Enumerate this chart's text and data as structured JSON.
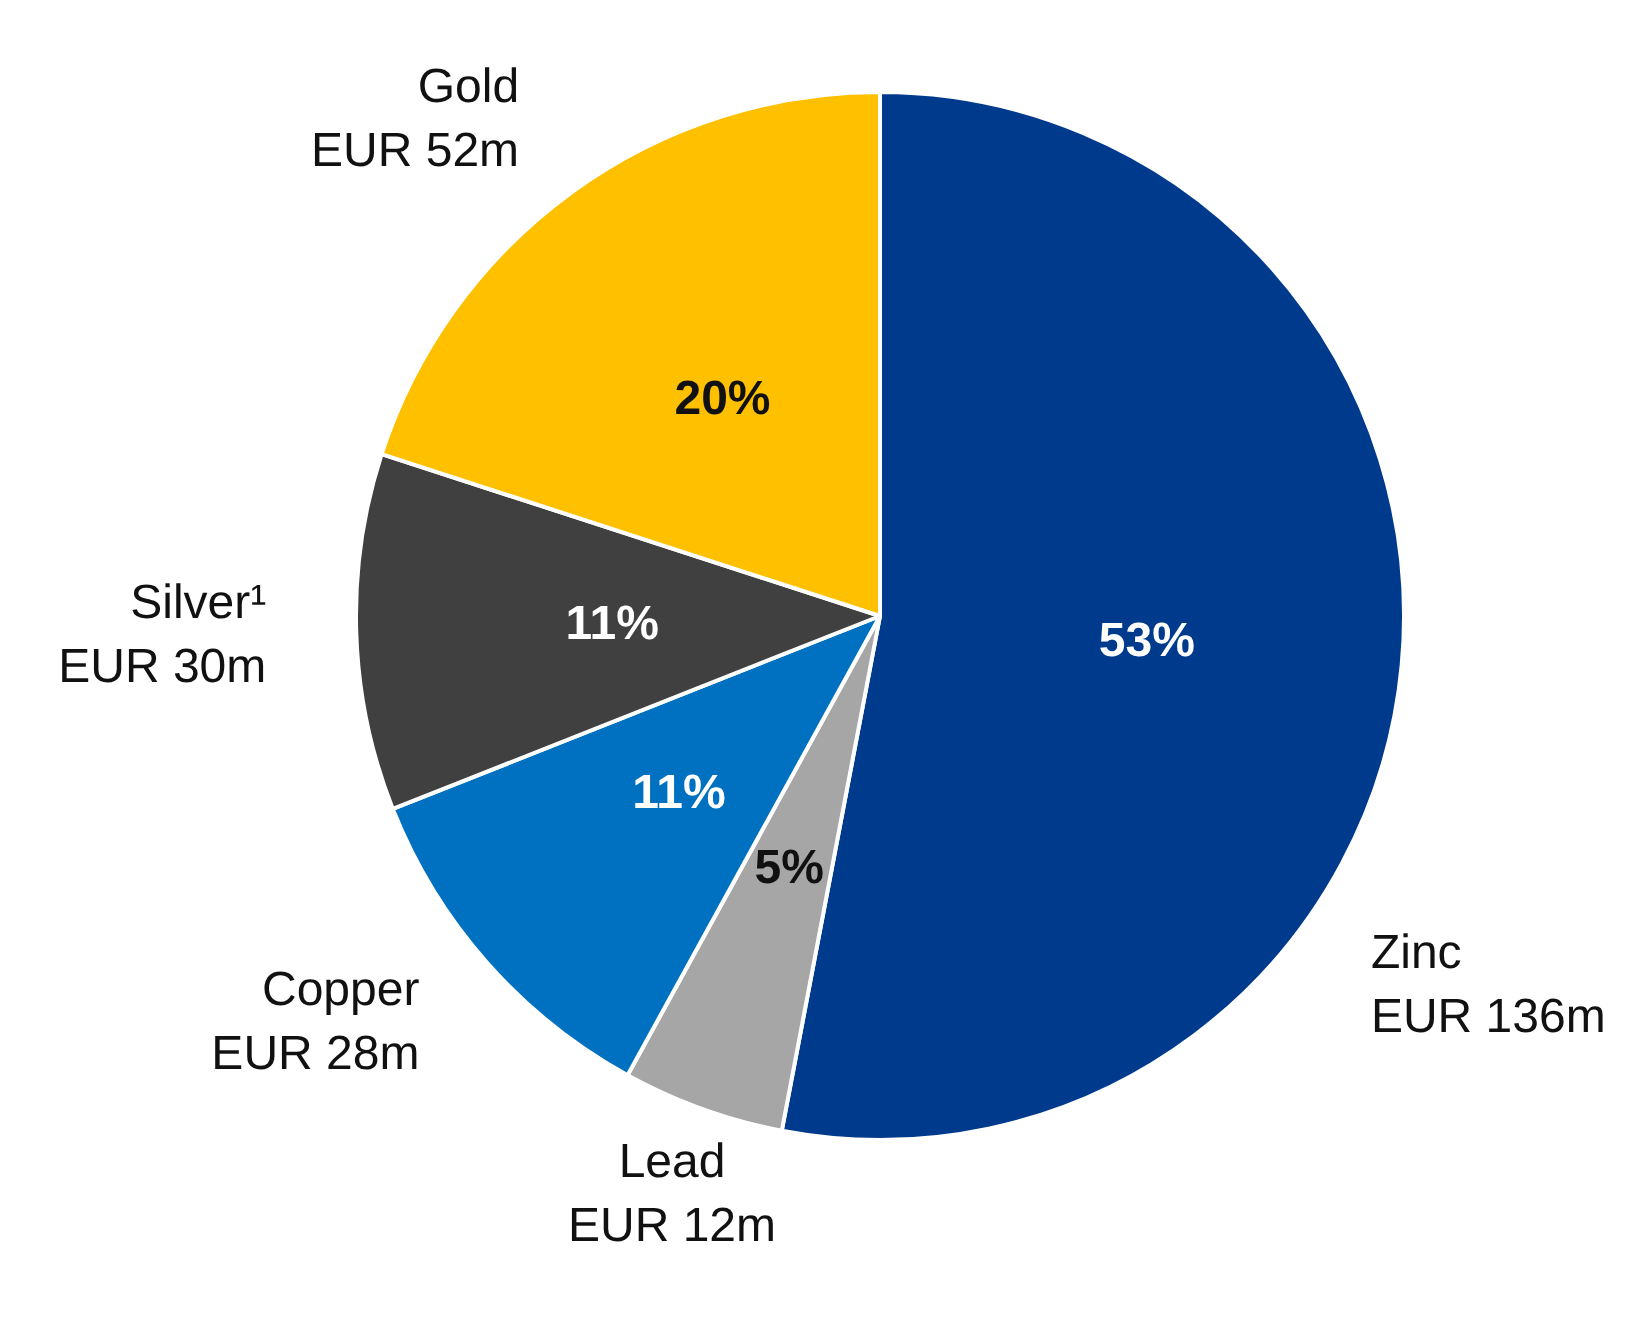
{
  "chart_data": {
    "type": "pie",
    "categories": [
      "Zinc\nEUR 136m",
      "Lead\nEUR 12m",
      "Copper\nEUR 28m",
      "Silver¹\nEUR 30m",
      "Gold\nEUR 52m"
    ],
    "values": [
      53,
      5,
      11,
      11,
      20
    ],
    "value_labels": [
      "53%",
      "5%",
      "11%",
      "11%",
      "20%"
    ],
    "colors": [
      "#003a8c",
      "#a6a6a6",
      "#0070c0",
      "#404040",
      "#ffc000"
    ],
    "legend": false
  }
}
